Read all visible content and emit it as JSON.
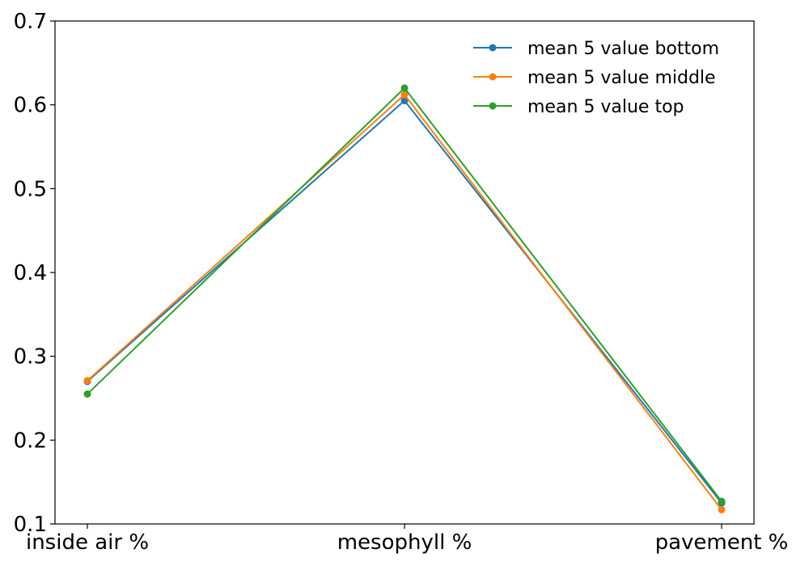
{
  "chart_data": {
    "type": "line",
    "title": "",
    "xlabel": "",
    "ylabel": "",
    "categories": [
      "inside air %",
      "mesophyll %",
      "pavement %"
    ],
    "ylim": [
      0.1,
      0.7
    ],
    "yticks": [
      0.1,
      0.2,
      0.3,
      0.4,
      0.5,
      0.6,
      0.7
    ],
    "ytick_labels": [
      "0.1",
      "0.2",
      "0.3",
      "0.4",
      "0.5",
      "0.6",
      "0.7"
    ],
    "grid": false,
    "legend_position": "top-right",
    "series": [
      {
        "name": "mean 5 value bottom",
        "color": "#1f77b4",
        "values": [
          0.27,
          0.605,
          0.125
        ]
      },
      {
        "name": "mean 5 value middle",
        "color": "#ff7f0e",
        "values": [
          0.271,
          0.612,
          0.117
        ]
      },
      {
        "name": "mean 5 value top",
        "color": "#2ca02c",
        "values": [
          0.255,
          0.62,
          0.127
        ]
      }
    ]
  }
}
